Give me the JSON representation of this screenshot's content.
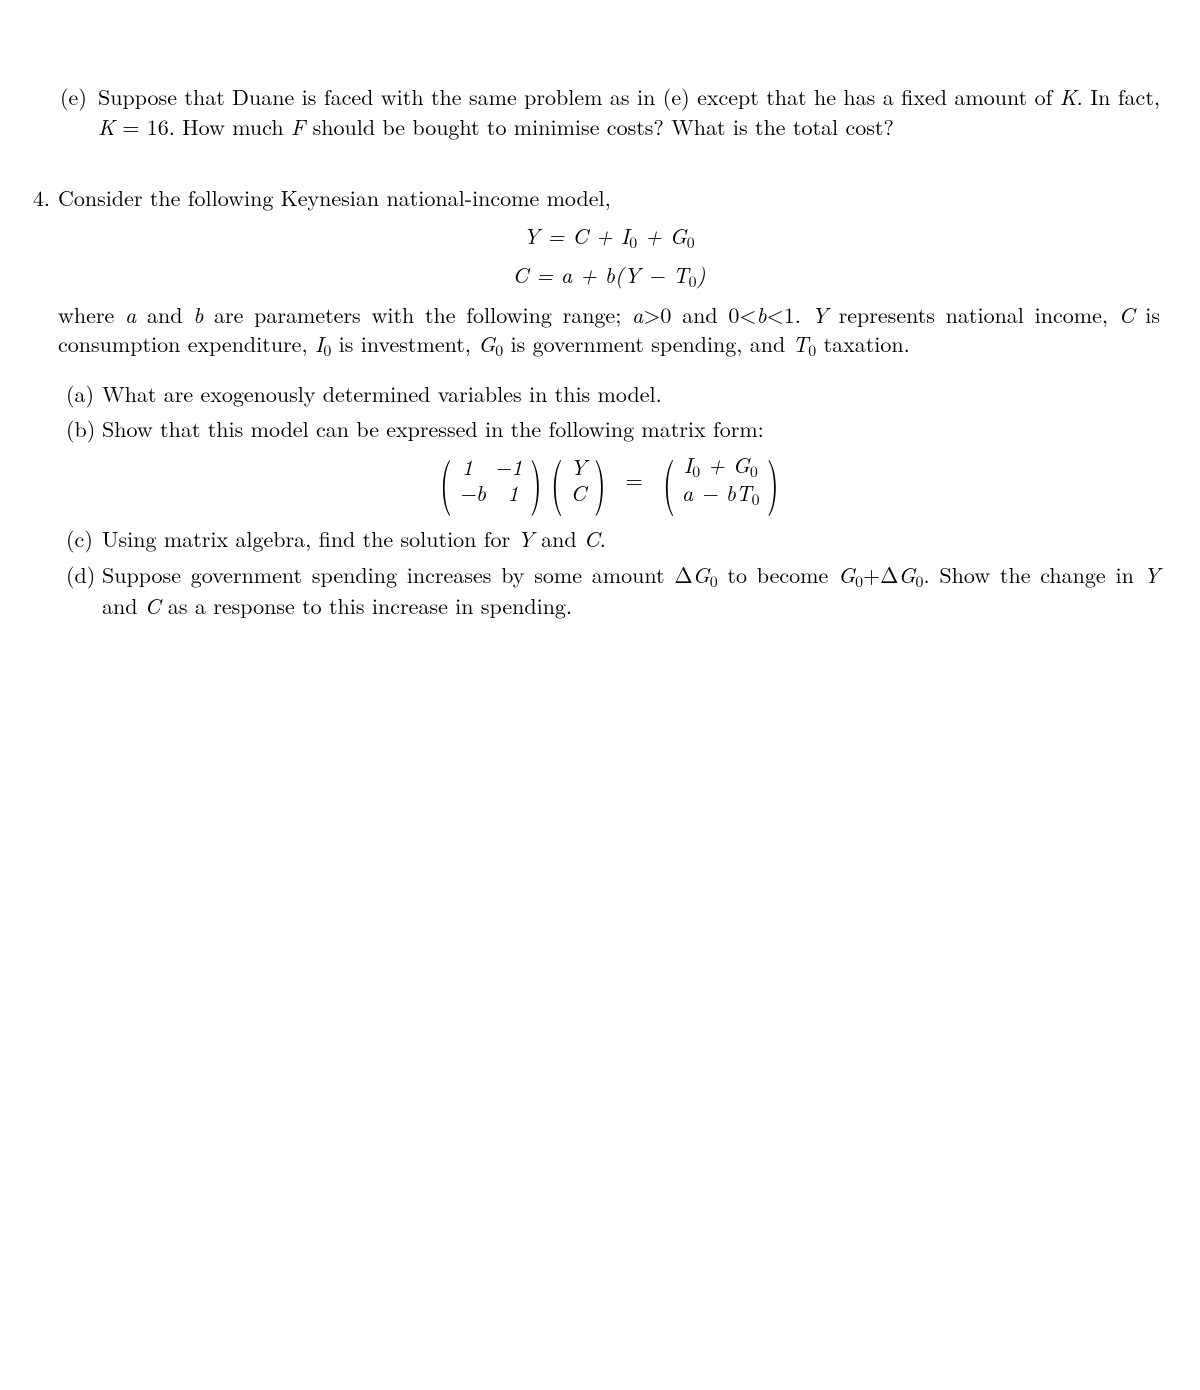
{
  "part_e": {
    "marker": "(e)",
    "text_html": "Suppose that Duane is faced with the same problem as in (e) except that he has a fixed amount of <span class='mi'>K</span>. In fact, <span class='mi'>K</span> = 16. How much <span class='mi'>F</span> should be bought to minimise costs? What is the total cost?"
  },
  "q4": {
    "number": "4.",
    "intro": "Consider the following Keynesian national-income model,",
    "eq1_html": "<span class='mi'>Y</span> = <span class='mi'>C</span> + <span class='mi'>I</span><span class='ssub'>0</span> + <span class='mi'>G</span><span class='ssub'>0</span>",
    "eq2_html": "<span class='mi'>C</span> = <span class='mi'>a</span> + <span class='mi'>b</span>(<span class='mi'>Y</span> − <span class='mi'>T</span><span class='ssub'>0</span>)",
    "where_html": "where <span class='mi'>a</span> and <span class='mi'>b</span> are parameters with the following range; <span class='mi'>a</span>&gt;0 and 0&lt;<span class='mi'>b</span>&lt;1. <span class='mi'>Y</span> represents national income, <span class='mi'>C</span> is consumption expenditure, <span class='mi'>I</span><span class='ssub'>0</span> is investment, <span class='mi'>G</span><span class='ssub'>0</span> is government spending, and <span class='mi'>T</span><span class='ssub'>0</span> taxation.",
    "parts": {
      "a": {
        "marker": "(a)",
        "text_html": "What are exogenously determined variables in this model."
      },
      "b": {
        "marker": "(b)",
        "text_html": "Show that this model can be expressed in the following matrix form:"
      },
      "c": {
        "marker": "(c)",
        "text_html": "Using matrix algebra, find the solution for <span class='mi'>Y</span> and <span class='mi'>C</span>."
      },
      "d": {
        "marker": "(d)",
        "text_html": "Suppose government spending increases by some amount Δ<span class='mi'>G</span><span class='ssub'>0</span> to become <span class='mi'>G</span><span class='ssub'>0</span>+Δ<span class='mi'>G</span><span class='ssub'>0</span>. Show the change in <span class='mi'>Y</span> and <span class='mi'>C</span> as a response to this increase in spending."
      }
    },
    "matrix": {
      "A": {
        "r1c1": "1",
        "r1c2": "−1",
        "r2c1": "−<span class='mi'>b</span>",
        "r2c2": "1"
      },
      "x": {
        "r1": "<span class='mi'>Y</span>",
        "r2": "<span class='mi'>C</span>"
      },
      "rhs": {
        "r1": "<span class='mi'>I</span><span class='ssub'>0</span> + <span class='mi'>G</span><span class='ssub'>0</span>",
        "r2": "<span class='mi'>a</span> − <span class='mi'>b</span><span class='mi'>T</span><span class='ssub'>0</span>"
      },
      "equals": "="
    }
  },
  "style": {
    "font_size_pt": 16,
    "text_color": "#000000",
    "background_color": "#ffffff"
  }
}
